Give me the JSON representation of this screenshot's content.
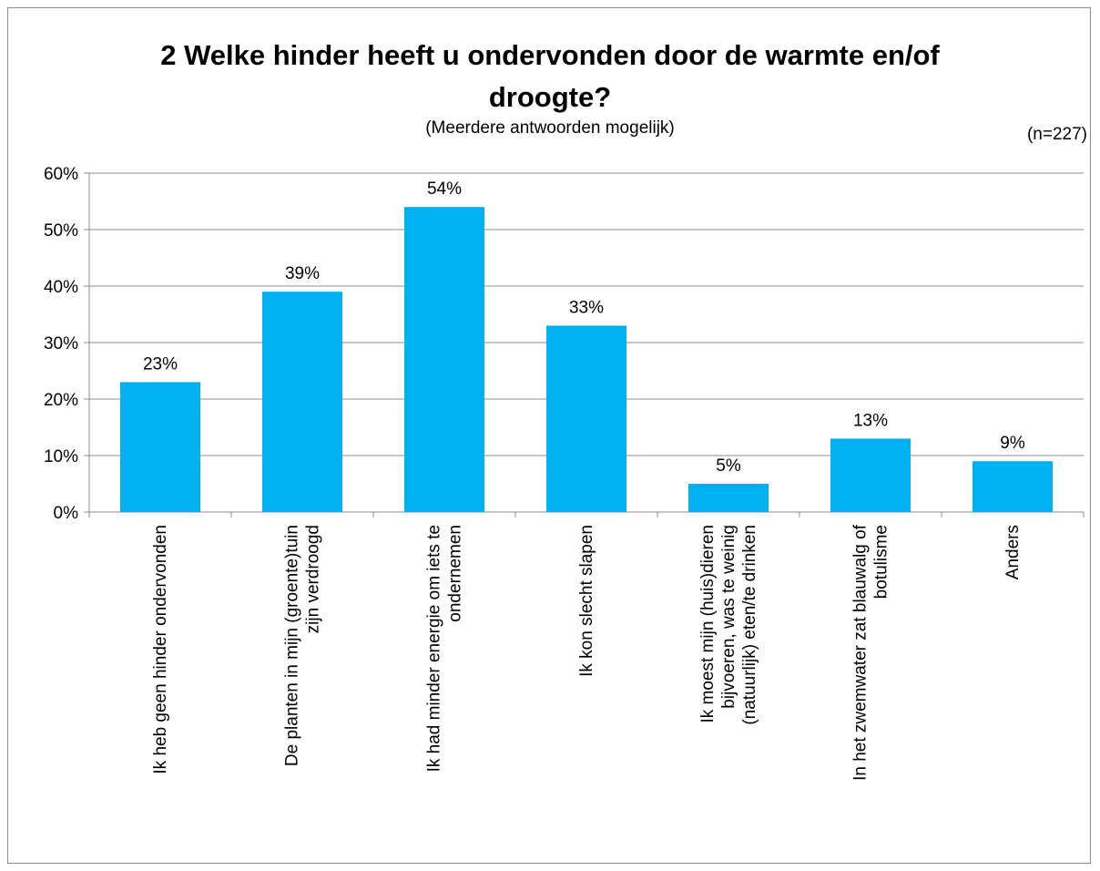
{
  "chart_data": {
    "type": "bar",
    "title_line1": "2 Welke hinder heeft u ondervonden door de warmte en/of",
    "title_line2": "droogte?",
    "subtitle": "(Meerdere antwoorden mogelijk)",
    "note": "(n=227)",
    "categories": [
      [
        "Ik heb geen hinder ondervonden"
      ],
      [
        "De planten in mijn (groente)tuin",
        "zijn verdroogd"
      ],
      [
        "Ik had minder energie om iets te",
        "ondernemen"
      ],
      [
        "Ik kon slecht slapen"
      ],
      [
        "Ik moest mijn (huis)dieren",
        "bijvoeren, was te weinig",
        "(natuurlijk) eten/te drinken"
      ],
      [
        "In het zwemwater zat blauwalg of",
        "botulisme"
      ],
      [
        "Anders"
      ]
    ],
    "values": [
      23,
      39,
      54,
      33,
      5,
      13,
      9
    ],
    "value_labels": [
      "23%",
      "39%",
      "54%",
      "33%",
      "5%",
      "13%",
      "9%"
    ],
    "yticks": [
      "0%",
      "10%",
      "20%",
      "30%",
      "40%",
      "50%",
      "60%"
    ],
    "ylim": [
      0,
      60
    ],
    "grid": true,
    "bar_color": "#00b0f0",
    "grid_color": "#8c8c8c"
  }
}
